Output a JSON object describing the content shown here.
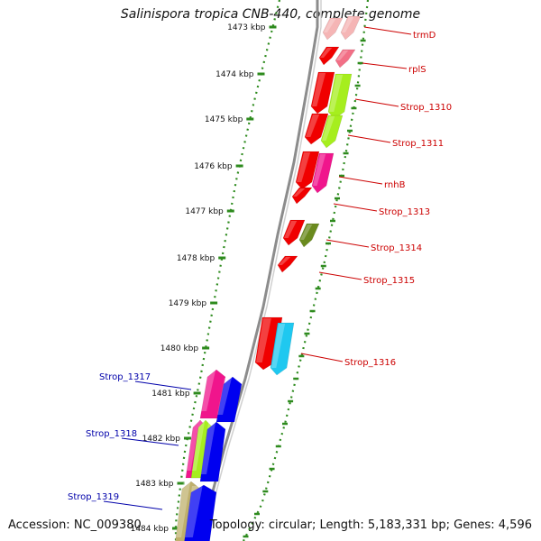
{
  "title": "Salinispora tropica CNB-440, complete genome",
  "footer": {
    "accession": "Accession: NC_009380",
    "summary": "Topology: circular; Length: 5,183,331 bp; Genes: 4,596"
  },
  "colors": {
    "tick": "#2e8b1e",
    "backbone": "#8c8c8c",
    "label_forward": "#cc0000",
    "label_reverse": "#0000aa",
    "red": "#f00000",
    "pink": "#f26f86",
    "light_pink": "#f5b5b5",
    "lime": "#a6ee1e",
    "magenta": "#f0158c",
    "olive": "#6a8a1e",
    "cyan": "#1fc8f0",
    "blue": "#0000f0",
    "khaki": "#bfb06c"
  },
  "scale_labels": [
    "1473 kbp",
    "1474 kbp",
    "1475 kbp",
    "1476 kbp",
    "1477 kbp",
    "1478 kbp",
    "1479 kbp",
    "1480 kbp",
    "1481 kbp",
    "1482 kbp",
    "1483 kbp",
    "1484 kbp"
  ],
  "gene_labels_forward": [
    "trmD",
    "rplS",
    "Strop_1310",
    "Strop_1311",
    "rnhB",
    "Strop_1313",
    "Strop_1314",
    "Strop_1315",
    "Strop_1316"
  ],
  "gene_labels_reverse": [
    "Strop_1317",
    "Strop_1318",
    "Strop_1319"
  ]
}
